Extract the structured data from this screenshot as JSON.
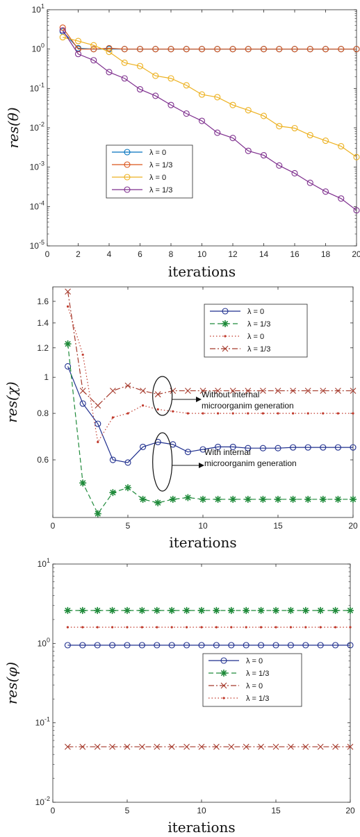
{
  "chart_data": [
    {
      "type": "line",
      "ylabel": "res(θ)",
      "xlabel": "iterations",
      "xlim": [
        0,
        20
      ],
      "ylim": [
        1e-05,
        10
      ],
      "yscale": "log",
      "grid": false,
      "legend_position": "middle-left",
      "x_ticks": [
        "0",
        "2",
        "4",
        "6",
        "8",
        "10",
        "12",
        "14",
        "16",
        "18",
        "20"
      ],
      "y_ticks": [
        "10^1",
        "10^0",
        "10^-1",
        "10^-2",
        "10^-3",
        "10^-4",
        "10^-5"
      ],
      "series": [
        {
          "name": "λ = 0",
          "color": "#0072BD",
          "line": "solid",
          "marker": "circle",
          "x": [
            1,
            2,
            3,
            4,
            5,
            6,
            7,
            8,
            9,
            10,
            11,
            12,
            13,
            14,
            15,
            16,
            17,
            18,
            19,
            20
          ],
          "values": [
            2.8,
            1.05,
            1.0,
            1.0,
            1.0,
            1.0,
            1.0,
            1.0,
            1.0,
            1.0,
            1.0,
            1.0,
            1.0,
            1.0,
            1.0,
            1.0,
            1.0,
            1.0,
            1.0,
            1.0
          ]
        },
        {
          "name": "λ = 1/3",
          "color": "#D95319",
          "line": "solid",
          "marker": "circle",
          "x": [
            1,
            2,
            3,
            4,
            5,
            6,
            7,
            8,
            9,
            10,
            11,
            12,
            13,
            14,
            15,
            16,
            17,
            18,
            19,
            20
          ],
          "values": [
            3.5,
            1.0,
            1.0,
            1.05,
            1.0,
            1.0,
            1.0,
            1.0,
            1.0,
            1.0,
            1.0,
            1.0,
            1.0,
            1.0,
            1.0,
            1.0,
            1.0,
            1.0,
            1.0,
            1.0
          ]
        },
        {
          "name": "λ = 0",
          "color": "#EDB120",
          "line": "solid",
          "marker": "circle",
          "x": [
            1,
            2,
            3,
            4,
            5,
            6,
            7,
            8,
            9,
            10,
            11,
            12,
            13,
            14,
            15,
            16,
            17,
            18,
            19,
            20
          ],
          "values": [
            2.0,
            1.6,
            1.25,
            0.85,
            0.45,
            0.37,
            0.21,
            0.18,
            0.12,
            0.07,
            0.06,
            0.038,
            0.028,
            0.02,
            0.011,
            0.0098,
            0.0065,
            0.0047,
            0.0034,
            0.0018
          ]
        },
        {
          "name": "λ = 1/3",
          "color": "#7E2F8E",
          "line": "solid",
          "marker": "circle",
          "x": [
            1,
            2,
            3,
            4,
            5,
            6,
            7,
            8,
            9,
            10,
            11,
            12,
            13,
            14,
            15,
            16,
            17,
            18,
            19,
            20
          ],
          "values": [
            3.0,
            0.75,
            0.52,
            0.26,
            0.18,
            0.095,
            0.065,
            0.038,
            0.023,
            0.015,
            0.0075,
            0.0055,
            0.0026,
            0.002,
            0.0011,
            0.0007,
            0.0004,
            0.00024,
            0.00016,
            8e-05
          ]
        }
      ]
    },
    {
      "type": "line",
      "ylabel": "res(χ)",
      "xlabel": "iterations",
      "xlim": [
        0,
        20
      ],
      "ylim": [
        0.42,
        1.75
      ],
      "yscale": "log",
      "grid": false,
      "legend_position": "top-right",
      "x_ticks": [
        "0",
        "5",
        "10",
        "15",
        "20"
      ],
      "y_ticks": [
        "0.6",
        "0.8",
        "1",
        "1.2",
        "1.4",
        "1.6"
      ],
      "annotations": [
        "Without internal\nmicroorganim generation",
        "With internal\nmicroorganim generation"
      ],
      "series": [
        {
          "name": "λ = 0",
          "color": "#1F2F8E",
          "line": "solid",
          "marker": "circle",
          "x": [
            1,
            2,
            3,
            4,
            5,
            6,
            7,
            8,
            9,
            10,
            11,
            12,
            13,
            14,
            15,
            16,
            17,
            18,
            19,
            20
          ],
          "values": [
            1.07,
            0.85,
            0.75,
            0.6,
            0.59,
            0.65,
            0.67,
            0.66,
            0.63,
            0.64,
            0.65,
            0.65,
            0.645,
            0.645,
            0.645,
            0.648,
            0.648,
            0.648,
            0.648,
            0.648
          ]
        },
        {
          "name": "λ = 1/3",
          "color": "#1F8A3A",
          "line": "dashed",
          "marker": "star",
          "x": [
            1,
            2,
            3,
            4,
            5,
            6,
            7,
            8,
            9,
            10,
            11,
            12,
            13,
            14,
            15,
            16,
            17,
            18,
            19,
            20
          ],
          "values": [
            1.23,
            0.52,
            0.43,
            0.49,
            0.505,
            0.47,
            0.46,
            0.47,
            0.475,
            0.47,
            0.47,
            0.47,
            0.47,
            0.47,
            0.47,
            0.47,
            0.47,
            0.47,
            0.47,
            0.47
          ]
        },
        {
          "name": "λ = 0",
          "color": "#C0392B",
          "line": "dotted",
          "marker": "dot",
          "x": [
            1,
            2,
            3,
            4,
            5,
            6,
            7,
            8,
            9,
            10,
            11,
            12,
            13,
            14,
            15,
            16,
            17,
            18,
            19,
            20
          ],
          "values": [
            1.55,
            1.15,
            0.67,
            0.78,
            0.8,
            0.84,
            0.82,
            0.81,
            0.8,
            0.8,
            0.8,
            0.8,
            0.8,
            0.8,
            0.8,
            0.8,
            0.8,
            0.8,
            0.8,
            0.8
          ]
        },
        {
          "name": "λ = 1/3",
          "color": "#A5392B",
          "line": "dashdot",
          "marker": "cross",
          "x": [
            1,
            2,
            3,
            4,
            5,
            6,
            7,
            8,
            9,
            10,
            11,
            12,
            13,
            14,
            15,
            16,
            17,
            18,
            19,
            20
          ],
          "values": [
            1.7,
            0.92,
            0.84,
            0.92,
            0.95,
            0.92,
            0.9,
            0.92,
            0.92,
            0.92,
            0.92,
            0.92,
            0.92,
            0.92,
            0.92,
            0.92,
            0.92,
            0.92,
            0.92,
            0.92
          ]
        }
      ]
    },
    {
      "type": "line",
      "ylabel": "res(φ)",
      "xlabel": "iterations",
      "xlim": [
        0,
        20
      ],
      "ylim": [
        0.01,
        10
      ],
      "yscale": "log",
      "grid": false,
      "legend_position": "middle-right",
      "x_ticks": [
        "0",
        "5",
        "10",
        "15",
        "20"
      ],
      "y_ticks": [
        "10^1",
        "10^0",
        "10^-1",
        "10^-2"
      ],
      "series": [
        {
          "name": "λ = 0",
          "color": "#1F2F8E",
          "line": "solid",
          "marker": "circle",
          "x": [
            1,
            2,
            3,
            4,
            5,
            6,
            7,
            8,
            9,
            10,
            11,
            12,
            13,
            14,
            15,
            16,
            17,
            18,
            19,
            20
          ],
          "values": [
            0.95,
            0.95,
            0.95,
            0.95,
            0.95,
            0.95,
            0.95,
            0.95,
            0.95,
            0.95,
            0.95,
            0.95,
            0.95,
            0.95,
            0.95,
            0.95,
            0.95,
            0.95,
            0.95,
            0.95
          ]
        },
        {
          "name": "λ = 1/3",
          "color": "#1F8A3A",
          "line": "dashed",
          "marker": "star",
          "x": [
            1,
            2,
            3,
            4,
            5,
            6,
            7,
            8,
            9,
            10,
            11,
            12,
            13,
            14,
            15,
            16,
            17,
            18,
            19,
            20
          ],
          "values": [
            2.6,
            2.6,
            2.6,
            2.6,
            2.6,
            2.6,
            2.6,
            2.6,
            2.6,
            2.6,
            2.6,
            2.6,
            2.6,
            2.6,
            2.6,
            2.6,
            2.6,
            2.6,
            2.6,
            2.6
          ]
        },
        {
          "name": "λ = 0",
          "color": "#A5392B",
          "line": "dashdot",
          "marker": "cross",
          "x": [
            1,
            2,
            3,
            4,
            5,
            6,
            7,
            8,
            9,
            10,
            11,
            12,
            13,
            14,
            15,
            16,
            17,
            18,
            19,
            20
          ],
          "values": [
            0.05,
            0.05,
            0.05,
            0.05,
            0.05,
            0.05,
            0.05,
            0.05,
            0.05,
            0.05,
            0.05,
            0.05,
            0.05,
            0.05,
            0.05,
            0.05,
            0.05,
            0.05,
            0.05,
            0.05
          ]
        },
        {
          "name": "λ = 1/3",
          "color": "#C0392B",
          "line": "dotted",
          "marker": "dot",
          "x": [
            1,
            2,
            3,
            4,
            5,
            6,
            7,
            8,
            9,
            10,
            11,
            12,
            13,
            14,
            15,
            16,
            17,
            18,
            19,
            20
          ],
          "values": [
            1.6,
            1.6,
            1.6,
            1.6,
            1.6,
            1.6,
            1.6,
            1.6,
            1.6,
            1.6,
            1.6,
            1.6,
            1.6,
            1.6,
            1.6,
            1.6,
            1.6,
            1.6,
            1.6,
            1.6
          ]
        }
      ]
    }
  ]
}
